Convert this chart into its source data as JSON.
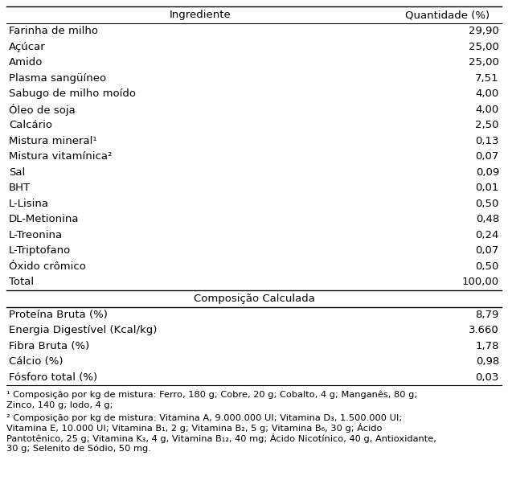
{
  "header": [
    "Ingrediente",
    "Quantidade (%)"
  ],
  "main_rows": [
    [
      "Farinha de milho",
      "29,90"
    ],
    [
      "Açúcar",
      "25,00"
    ],
    [
      "Amido",
      "25,00"
    ],
    [
      "Plasma sangüíneo",
      "7,51"
    ],
    [
      "Sabugo de milho moído",
      "4,00"
    ],
    [
      "Óleo de soja",
      "4,00"
    ],
    [
      "Calcário",
      "2,50"
    ],
    [
      "Mistura mineral¹",
      "0,13"
    ],
    [
      "Mistura vitamínica²",
      "0,07"
    ],
    [
      "Sal",
      "0,09"
    ],
    [
      "BHT",
      "0,01"
    ],
    [
      "L-Lisina",
      "0,50"
    ],
    [
      "DL-Metionina",
      "0,48"
    ],
    [
      "L-Treonina",
      "0,24"
    ],
    [
      "L-Triptofano",
      "0,07"
    ],
    [
      "Óxido crômico",
      "0,50"
    ],
    [
      "Total",
      "100,00"
    ]
  ],
  "section_header": "Composição Calculada",
  "calc_rows": [
    [
      "Proteína Bruta (%)",
      "8,79"
    ],
    [
      "Energia Digestível (Kcal/kg)",
      "3.660"
    ],
    [
      "Fibra Bruta (%)",
      "1,78"
    ],
    [
      "Cálcio (%)",
      "0,98"
    ],
    [
      "Fósforo total (%)",
      "0,03"
    ]
  ],
  "footnote1_line1": "¹ Composição por kg de mistura: Ferro, 180 g; Cobre, 20 g; Cobalto, 4 g; Manganês, 80 g;",
  "footnote1_line2": "Zinco, 140 g; Iodo, 4 g;",
  "footnote2_line1": "² Composição por kg de mistura: Vitamina A, 9.000.000 UI; Vitamina D₃, 1.500.000 UI;",
  "footnote2_line2": "Vitamina E, 10.000 UI; Vitamina B₁, 2 g; Vitamina B₂, 5 g; Vitamina B₆, 30 g; Ácido",
  "footnote2_line3": "Pantotênico, 25 g; Vitamina K₃, 4 g, Vitamina B₁₂, 40 mg; Ácido Nicotínico, 40 g, Antioxidante,",
  "footnote2_line4": "30 g; Selenito de Sódio, 50 mg.",
  "bg_color": "#ffffff",
  "text_color": "#000000",
  "font_size": 9.5,
  "footnote_font_size": 8.2
}
